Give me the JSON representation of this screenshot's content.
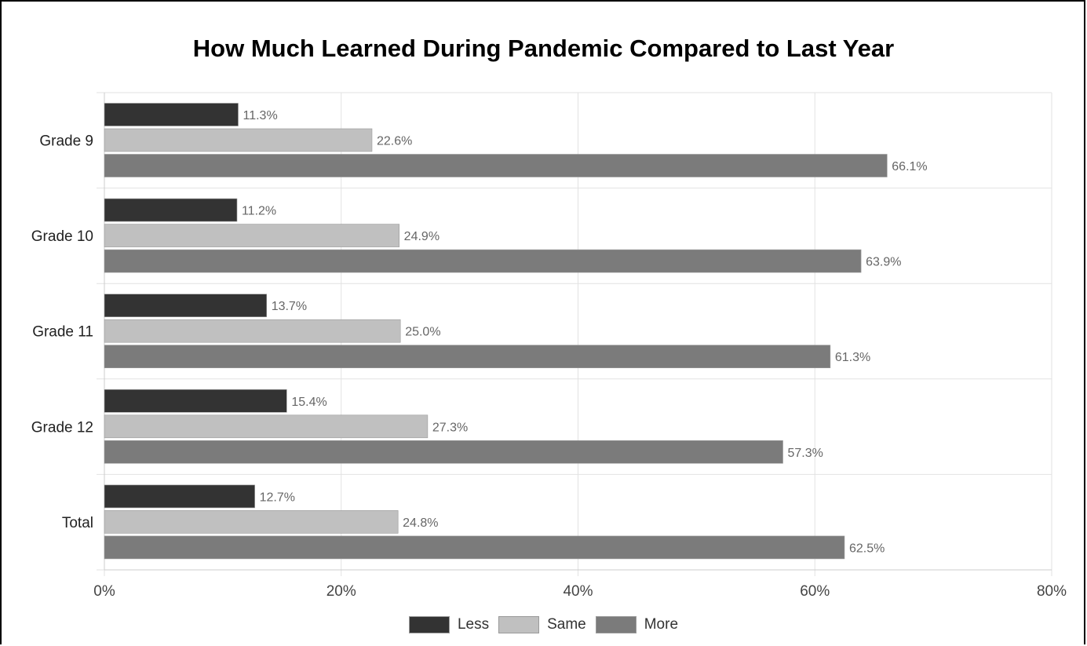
{
  "chart_data": {
    "type": "bar",
    "orientation": "horizontal",
    "title": "How Much Learned During Pandemic Compared to Last Year",
    "xlabel": "",
    "ylabel": "",
    "categories": [
      "Grade 9",
      "Grade 10",
      "Grade 11",
      "Grade 12",
      "Total"
    ],
    "series": [
      {
        "name": "Less",
        "color": "#333333",
        "values": [
          11.3,
          11.2,
          13.7,
          15.4,
          12.7
        ],
        "labels": [
          "11.3%",
          "11.2%",
          "13.7%",
          "15.4%",
          "12.7%"
        ]
      },
      {
        "name": "Same",
        "color": "#c0c0c0",
        "values": [
          22.6,
          24.9,
          25.0,
          27.3,
          24.8
        ],
        "labels": [
          "22.6%",
          "24.9%",
          "25.0%",
          "27.3%",
          "24.8%"
        ]
      },
      {
        "name": "More",
        "color": "#7b7b7b",
        "values": [
          66.1,
          63.9,
          61.3,
          57.3,
          62.5
        ],
        "labels": [
          "66.1%",
          "63.9%",
          "61.3%",
          "57.3%",
          "62.5%"
        ]
      }
    ],
    "xlim": [
      0,
      80
    ],
    "xticks": [
      0,
      20,
      40,
      60,
      80
    ],
    "xtick_labels": [
      "0%",
      "20%",
      "40%",
      "60%",
      "80%"
    ],
    "grid": true,
    "legend": "bottom"
  }
}
